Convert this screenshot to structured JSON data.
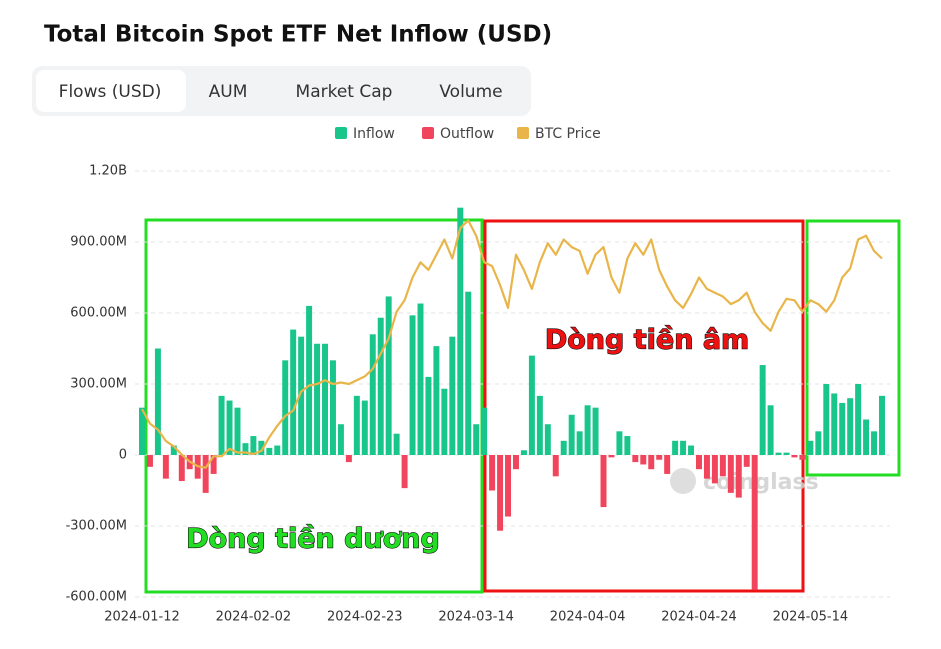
{
  "chart_data": {
    "type": "bar",
    "title": "Total Bitcoin Spot ETF Net Inflow (USD)",
    "tabs": [
      "Flows (USD)",
      "AUM",
      "Market Cap",
      "Volume"
    ],
    "active_tab": 0,
    "annotations": [
      "Dòng tiền dương",
      "Dòng tiền âm"
    ],
    "watermark": "coinglass",
    "categories": [
      "2024-01-12",
      null,
      null,
      null,
      null,
      null,
      null,
      null,
      null,
      null,
      null,
      null,
      null,
      null,
      "2024-02-02",
      null,
      null,
      null,
      null,
      null,
      null,
      null,
      null,
      null,
      null,
      null,
      null,
      null,
      "2024-02-23",
      null,
      null,
      null,
      null,
      null,
      null,
      null,
      null,
      null,
      null,
      null,
      null,
      null,
      "2024-03-14",
      null,
      null,
      null,
      null,
      null,
      null,
      null,
      null,
      null,
      null,
      null,
      null,
      null,
      "2024-04-04",
      null,
      null,
      null,
      null,
      null,
      null,
      null,
      null,
      null,
      null,
      null,
      null,
      null,
      "2024-04-24",
      null,
      null,
      null,
      null,
      null,
      null,
      null,
      null,
      null,
      null,
      null,
      null,
      null,
      "2024-05-14",
      null,
      null,
      null,
      null,
      null,
      null,
      null,
      null,
      null
    ],
    "ylim": [
      -600000000,
      1200000000
    ],
    "yticks": [
      {
        "value": -600000000,
        "label": "-600.00M"
      },
      {
        "value": -300000000,
        "label": "-300.00M"
      },
      0,
      {
        "value": 300000000,
        "label": "300.00M"
      },
      {
        "value": 600000000,
        "label": "600.00M"
      },
      {
        "value": 900000000,
        "label": "900.00M"
      },
      {
        "value": 1200000000,
        "label": "1.20B"
      }
    ],
    "y2lim": [
      24000,
      80000
    ],
    "grid": true,
    "series": [
      {
        "name": "Inflow",
        "type": "bar",
        "color": "#18c58a",
        "values": [
          200000000,
          null,
          450000000,
          null,
          40000000,
          null,
          null,
          null,
          null,
          null,
          250000000,
          230000000,
          200000000,
          50000000,
          80000000,
          60000000,
          30000000,
          40000000,
          400000000,
          530000000,
          500000000,
          630000000,
          470000000,
          470000000,
          400000000,
          130000000,
          null,
          250000000,
          230000000,
          510000000,
          580000000,
          670000000,
          90000000,
          null,
          590000000,
          640000000,
          330000000,
          460000000,
          280000000,
          500000000,
          1045000000,
          690000000,
          130000000,
          200000000,
          null,
          null,
          null,
          null,
          20000000,
          420000000,
          250000000,
          130000000,
          null,
          60000000,
          170000000,
          100000000,
          210000000,
          200000000,
          null,
          null,
          100000000,
          80000000,
          null,
          null,
          null,
          null,
          null,
          60000000,
          60000000,
          40000000,
          null,
          null,
          null,
          null,
          null,
          null,
          null,
          null,
          380000000,
          210000000,
          10000000,
          10000000,
          null,
          null,
          60000000,
          100000000,
          300000000,
          260000000,
          220000000,
          240000000,
          300000000,
          150000000,
          100000000,
          250000000
        ]
      },
      {
        "name": "Outflow",
        "type": "bar",
        "color": "#f0455c",
        "values": [
          null,
          -50000000,
          null,
          -100000000,
          null,
          -110000000,
          -60000000,
          -100000000,
          -160000000,
          -80000000,
          null,
          null,
          null,
          null,
          null,
          null,
          null,
          null,
          null,
          null,
          null,
          null,
          null,
          null,
          null,
          null,
          -30000000,
          null,
          null,
          null,
          null,
          null,
          null,
          -140000000,
          null,
          null,
          null,
          null,
          null,
          null,
          null,
          null,
          null,
          null,
          -150000000,
          -320000000,
          -260000000,
          -60000000,
          null,
          null,
          null,
          null,
          -90000000,
          null,
          null,
          null,
          null,
          null,
          -220000000,
          -10000000,
          null,
          null,
          -30000000,
          -40000000,
          -60000000,
          -20000000,
          -80000000,
          null,
          null,
          null,
          -60000000,
          -100000000,
          -120000000,
          -90000000,
          -160000000,
          -180000000,
          -50000000,
          -570000000,
          null,
          null,
          null,
          null,
          -10000000,
          -20000000,
          null,
          null,
          null,
          null,
          null,
          null,
          null,
          null,
          null,
          null
        ]
      },
      {
        "name": "BTC Price",
        "type": "line",
        "axis": "y2",
        "color": "#e9b54a",
        "values": [
          48700,
          46800,
          46000,
          44500,
          43800,
          42700,
          41800,
          41200,
          41000,
          42500,
          42500,
          43500,
          43000,
          43000,
          42800,
          43200,
          45000,
          46500,
          47800,
          48500,
          51000,
          51800,
          52000,
          52500,
          52000,
          52200,
          52000,
          52500,
          53000,
          54000,
          56000,
          58000,
          61500,
          63000,
          66000,
          68000,
          67000,
          69000,
          71000,
          68500,
          72500,
          73500,
          71500,
          68000,
          67500,
          65000,
          62000,
          69000,
          67000,
          64500,
          68000,
          70500,
          69000,
          71000,
          70000,
          69500,
          66500,
          69000,
          70000,
          66000,
          64000,
          68500,
          70500,
          69000,
          71000,
          67000,
          64800,
          63000,
          62000,
          63800,
          66000,
          64500,
          64000,
          63500,
          62500,
          63000,
          64000,
          61500,
          60000,
          59000,
          61500,
          63200,
          63000,
          61500,
          63000,
          62500,
          61500,
          63000,
          66000,
          67200,
          71000,
          71500,
          69500,
          68500
        ]
      }
    ]
  }
}
